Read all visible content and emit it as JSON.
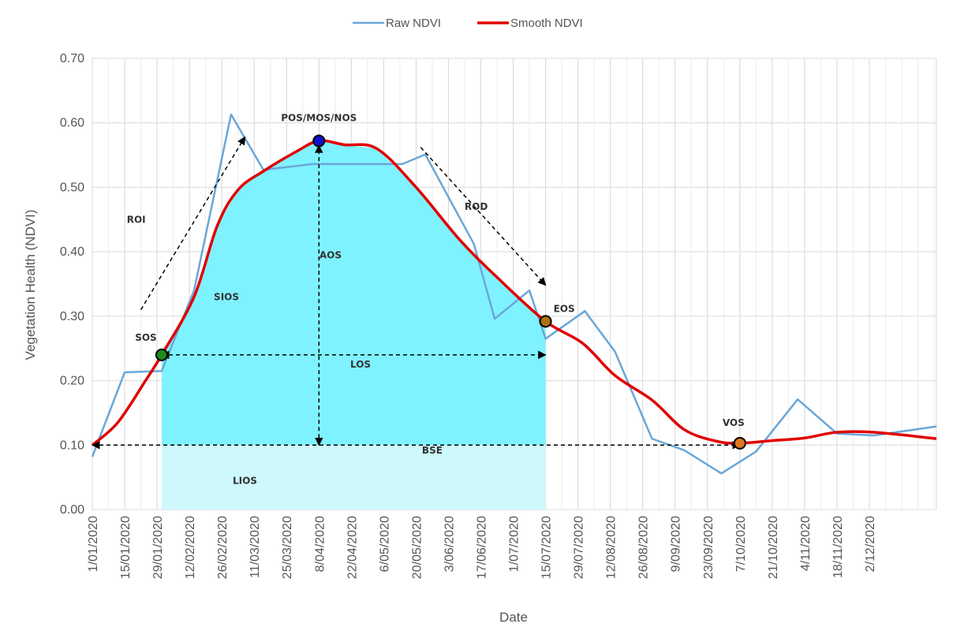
{
  "chart_data": {
    "type": "line",
    "xlabel": "Date",
    "ylabel": "Vegetation Health (NDVI)",
    "ylim": [
      0,
      0.7
    ],
    "xlim": [
      "2020-01-01",
      "2020-12-31"
    ],
    "y_ticks": [
      "0.00",
      "0.10",
      "0.20",
      "0.30",
      "0.40",
      "0.50",
      "0.60",
      "0.70"
    ],
    "y_tick_values": [
      0,
      0.1,
      0.2,
      0.3,
      0.4,
      0.5,
      0.6,
      0.7
    ],
    "x_ticks": [
      "1/01/2020",
      "15/01/2020",
      "29/01/2020",
      "12/02/2020",
      "26/02/2020",
      "11/03/2020",
      "25/03/2020",
      "8/04/2020",
      "22/04/2020",
      "6/05/2020",
      "20/05/2020",
      "3/06/2020",
      "17/06/2020",
      "1/07/2020",
      "15/07/2020",
      "29/07/2020",
      "12/08/2020",
      "26/08/2020",
      "9/09/2020",
      "23/09/2020",
      "7/10/2020",
      "21/10/2020",
      "4/11/2020",
      "18/11/2020",
      "2/12/2020"
    ],
    "x_tick_dates": [
      "2020-01-01",
      "2020-01-15",
      "2020-01-29",
      "2020-02-12",
      "2020-02-26",
      "2020-03-11",
      "2020-03-25",
      "2020-04-08",
      "2020-04-22",
      "2020-05-06",
      "2020-05-20",
      "2020-06-03",
      "2020-06-17",
      "2020-07-01",
      "2020-07-15",
      "2020-07-29",
      "2020-08-12",
      "2020-08-26",
      "2020-09-09",
      "2020-09-23",
      "2020-10-07",
      "2020-10-21",
      "2020-11-04",
      "2020-11-18",
      "2020-12-02"
    ],
    "grid": true,
    "legend_position": "top-center",
    "series": [
      {
        "name": "Raw NDVI",
        "color": "#6aa7d8",
        "points": [
          [
            "2020-01-01",
            0.082
          ],
          [
            "2020-01-15",
            0.213
          ],
          [
            "2020-01-31",
            0.215
          ],
          [
            "2020-02-14",
            0.34
          ],
          [
            "2020-03-01",
            0.613
          ],
          [
            "2020-03-15",
            0.527
          ],
          [
            "2020-04-05",
            0.536
          ],
          [
            "2020-04-28",
            0.536
          ],
          [
            "2020-05-14",
            0.536
          ],
          [
            "2020-05-24",
            0.551
          ],
          [
            "2020-06-14",
            0.412
          ],
          [
            "2020-06-23",
            0.296
          ],
          [
            "2020-07-08",
            0.34
          ],
          [
            "2020-07-15",
            0.265
          ],
          [
            "2020-08-01",
            0.308
          ],
          [
            "2020-08-14",
            0.245
          ],
          [
            "2020-08-30",
            0.11
          ],
          [
            "2020-09-13",
            0.092
          ],
          [
            "2020-09-29",
            0.056
          ],
          [
            "2020-10-14",
            0.09
          ],
          [
            "2020-11-01",
            0.171
          ],
          [
            "2020-11-18",
            0.118
          ],
          [
            "2020-12-04",
            0.115
          ],
          [
            "2020-12-31",
            0.129
          ]
        ]
      },
      {
        "name": "Smooth NDVI",
        "color": "#e00000",
        "points": [
          [
            "2020-01-01",
            0.1
          ],
          [
            "2020-01-12",
            0.135
          ],
          [
            "2020-01-24",
            0.2
          ],
          [
            "2020-01-31",
            0.24
          ],
          [
            "2020-02-14",
            0.33
          ],
          [
            "2020-02-24",
            0.44
          ],
          [
            "2020-03-04",
            0.496
          ],
          [
            "2020-03-15",
            0.525
          ],
          [
            "2020-03-29",
            0.555
          ],
          [
            "2020-04-08",
            0.572
          ],
          [
            "2020-04-19",
            0.566
          ],
          [
            "2020-05-03",
            0.56
          ],
          [
            "2020-05-20",
            0.5
          ],
          [
            "2020-06-08",
            0.418
          ],
          [
            "2020-06-25",
            0.357
          ],
          [
            "2020-07-15",
            0.292
          ],
          [
            "2020-07-31",
            0.258
          ],
          [
            "2020-08-14",
            0.208
          ],
          [
            "2020-08-30",
            0.17
          ],
          [
            "2020-09-13",
            0.124
          ],
          [
            "2020-09-27",
            0.106
          ],
          [
            "2020-10-07",
            0.103
          ],
          [
            "2020-10-21",
            0.107
          ],
          [
            "2020-11-04",
            0.111
          ],
          [
            "2020-11-18",
            0.12
          ],
          [
            "2020-12-04",
            0.12
          ],
          [
            "2020-12-31",
            0.11
          ]
        ]
      }
    ],
    "shaded_regions": [
      {
        "name": "SIOS",
        "color": "#7ff2ff",
        "from": "2020-01-31",
        "to": "2020-07-15",
        "lower": 0.1,
        "upper": "Smooth NDVI"
      },
      {
        "name": "LIOS",
        "color": "#cdf8fc",
        "from": "2020-01-31",
        "to": "2020-07-15",
        "lower": 0,
        "upper": 0.1
      }
    ],
    "markers": [
      {
        "label": "SOS",
        "date": "2020-01-31",
        "value": 0.24,
        "color": "#1a8c1a"
      },
      {
        "label": "POS/MOS/NOS",
        "date": "2020-04-08",
        "value": 0.572,
        "color": "#1010d0"
      },
      {
        "label": "EOS",
        "date": "2020-07-15",
        "value": 0.292,
        "color": "#b07010"
      },
      {
        "label": "VOS",
        "date": "2020-10-07",
        "value": 0.103,
        "color": "#e07820"
      }
    ],
    "annotations": [
      {
        "text": "ROI",
        "date": "2020-01-20",
        "value": 0.445
      },
      {
        "text": "ROD",
        "date": "2020-06-15",
        "value": 0.465
      },
      {
        "text": "AOS",
        "date": "2020-04-13",
        "value": 0.39
      },
      {
        "text": "SIOS",
        "date": "2020-02-28",
        "value": 0.325
      },
      {
        "text": "LOS",
        "date": "2020-04-26",
        "value": 0.22
      },
      {
        "text": "BSE",
        "date": "2020-05-27",
        "value": 0.087
      },
      {
        "text": "LIOS",
        "date": "2020-03-07",
        "value": 0.04
      }
    ],
    "arrows": [
      {
        "name": "roi-arrow",
        "from": [
          "2020-01-22",
          0.31
        ],
        "to": [
          "2020-03-07",
          0.578
        ],
        "heads": "end"
      },
      {
        "name": "rod-arrow",
        "from": [
          "2020-05-22",
          0.562
        ],
        "to": [
          "2020-07-15",
          0.348
        ],
        "heads": "end"
      },
      {
        "name": "aos-arrow",
        "from": [
          "2020-04-08",
          0.1
        ],
        "to": [
          "2020-04-08",
          0.565
        ],
        "heads": "both"
      },
      {
        "name": "los-arrow",
        "from": [
          "2020-01-31",
          0.24
        ],
        "to": [
          "2020-07-15",
          0.24
        ],
        "heads": "both"
      },
      {
        "name": "bse-arrow",
        "from": [
          "2020-01-01",
          0.1
        ],
        "to": [
          "2020-10-07",
          0.1
        ],
        "heads": "both"
      }
    ]
  }
}
